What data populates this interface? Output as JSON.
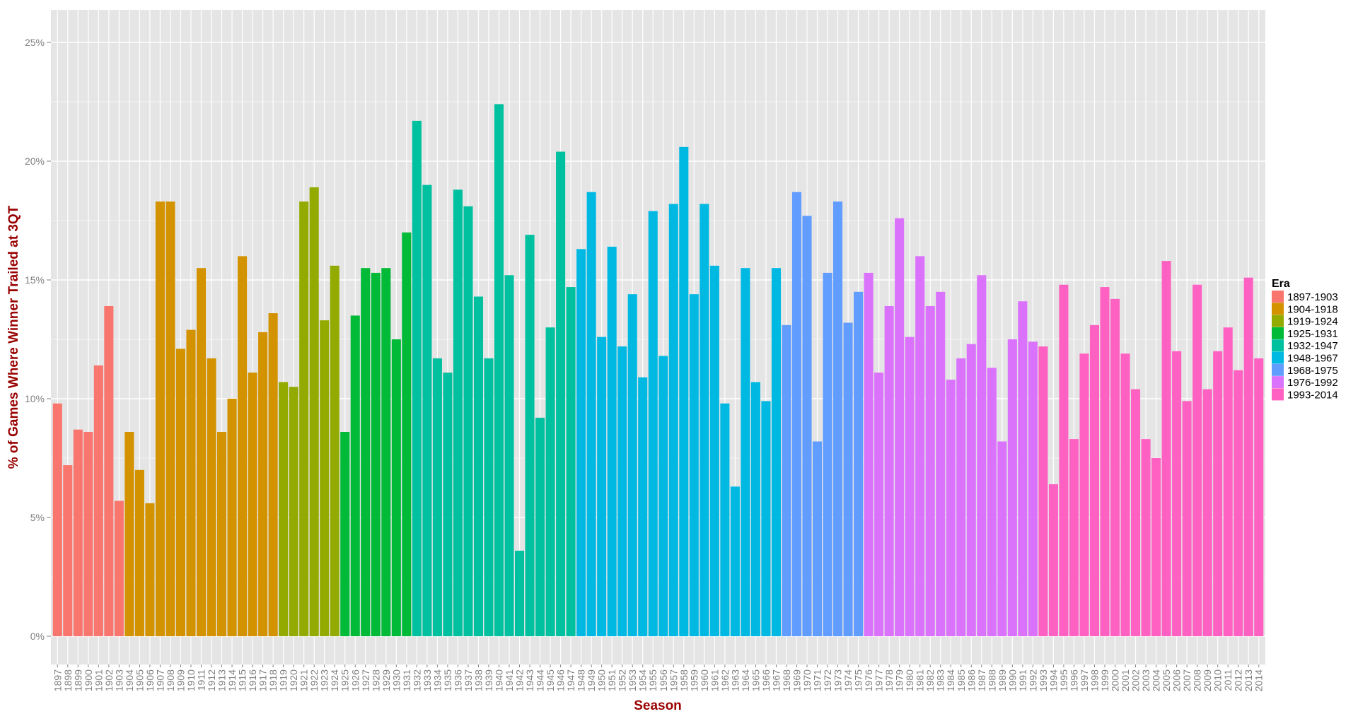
{
  "chart_data": {
    "type": "bar",
    "title": "",
    "xlabel": "Season",
    "ylabel": "% of Games Where Winner Trailed at 3QT",
    "ylim": [
      0,
      0.26
    ],
    "y_ticks": [
      0,
      0.05,
      0.1,
      0.15,
      0.2,
      0.25
    ],
    "y_tick_labels": [
      "0%",
      "5%",
      "10%",
      "15%",
      "20%",
      "25%"
    ],
    "grid": true,
    "legend_position": "right",
    "legend": {
      "title": "Era",
      "entries": [
        {
          "label": "1897-1903",
          "color": "#F8766D"
        },
        {
          "label": "1904-1918",
          "color": "#D39200"
        },
        {
          "label": "1919-1924",
          "color": "#93AA00"
        },
        {
          "label": "1925-1931",
          "color": "#00BA38"
        },
        {
          "label": "1932-1947",
          "color": "#00C19F"
        },
        {
          "label": "1948-1967",
          "color": "#00B9E3"
        },
        {
          "label": "1968-1975",
          "color": "#619CFF"
        },
        {
          "label": "1976-1992",
          "color": "#DB72FB"
        },
        {
          "label": "1993-2014",
          "color": "#FF61C3"
        }
      ]
    },
    "categories": [
      "1897",
      "1898",
      "1899",
      "1900",
      "1901",
      "1902",
      "1903",
      "1904",
      "1905",
      "1906",
      "1907",
      "1908",
      "1909",
      "1910",
      "1911",
      "1912",
      "1913",
      "1914",
      "1915",
      "1916",
      "1917",
      "1918",
      "1919",
      "1920",
      "1921",
      "1922",
      "1923",
      "1924",
      "1925",
      "1926",
      "1927",
      "1928",
      "1929",
      "1930",
      "1931",
      "1932",
      "1933",
      "1934",
      "1935",
      "1936",
      "1937",
      "1938",
      "1939",
      "1940",
      "1941",
      "1942",
      "1943",
      "1944",
      "1945",
      "1946",
      "1947",
      "1948",
      "1949",
      "1950",
      "1951",
      "1952",
      "1953",
      "1954",
      "1955",
      "1956",
      "1957",
      "1958",
      "1959",
      "1960",
      "1961",
      "1962",
      "1963",
      "1964",
      "1965",
      "1966",
      "1967",
      "1968",
      "1969",
      "1970",
      "1971",
      "1972",
      "1973",
      "1974",
      "1975",
      "1976",
      "1977",
      "1978",
      "1979",
      "1980",
      "1981",
      "1982",
      "1983",
      "1984",
      "1985",
      "1986",
      "1987",
      "1988",
      "1989",
      "1990",
      "1991",
      "1992",
      "1993",
      "1994",
      "1995",
      "1996",
      "1997",
      "1998",
      "1999",
      "2000",
      "2001",
      "2002",
      "2003",
      "2004",
      "2005",
      "2006",
      "2007",
      "2008",
      "2009",
      "2010",
      "2011",
      "2012",
      "2013",
      "2014"
    ],
    "values": [
      0.098,
      0.072,
      0.087,
      0.086,
      0.114,
      0.139,
      0.057,
      0.086,
      0.07,
      0.056,
      0.183,
      0.183,
      0.121,
      0.129,
      0.155,
      0.117,
      0.086,
      0.1,
      0.16,
      0.111,
      0.128,
      0.136,
      0.107,
      0.105,
      0.183,
      0.189,
      0.133,
      0.156,
      0.086,
      0.135,
      0.155,
      0.153,
      0.155,
      0.125,
      0.17,
      0.217,
      0.19,
      0.117,
      0.111,
      0.188,
      0.181,
      0.143,
      0.117,
      0.224,
      0.152,
      0.036,
      0.169,
      0.092,
      0.13,
      0.204,
      0.147,
      0.163,
      0.187,
      0.126,
      0.164,
      0.122,
      0.144,
      0.109,
      0.179,
      0.118,
      0.182,
      0.206,
      0.144,
      0.182,
      0.156,
      0.098,
      0.063,
      0.155,
      0.107,
      0.099,
      0.155,
      0.131,
      0.187,
      0.177,
      0.082,
      0.153,
      0.183,
      0.132,
      0.145,
      0.153,
      0.111,
      0.139,
      0.176,
      0.126,
      0.16,
      0.139,
      0.145,
      0.108,
      0.117,
      0.123,
      0.152,
      0.113,
      0.082,
      0.125,
      0.141,
      0.124,
      0.122,
      0.064,
      0.148,
      0.083,
      0.119,
      0.131,
      0.147,
      0.142,
      0.119,
      0.104,
      0.083,
      0.075,
      0.158,
      0.12,
      0.099,
      0.148,
      0.104,
      0.12,
      0.13,
      0.112,
      0.151,
      0.117
    ],
    "eras": [
      0,
      0,
      0,
      0,
      0,
      0,
      0,
      1,
      1,
      1,
      1,
      1,
      1,
      1,
      1,
      1,
      1,
      1,
      1,
      1,
      1,
      1,
      2,
      2,
      2,
      2,
      2,
      2,
      3,
      3,
      3,
      3,
      3,
      3,
      3,
      4,
      4,
      4,
      4,
      4,
      4,
      4,
      4,
      4,
      4,
      4,
      4,
      4,
      4,
      4,
      4,
      5,
      5,
      5,
      5,
      5,
      5,
      5,
      5,
      5,
      5,
      5,
      5,
      5,
      5,
      5,
      5,
      5,
      5,
      5,
      5,
      6,
      6,
      6,
      6,
      6,
      6,
      6,
      6,
      7,
      7,
      7,
      7,
      7,
      7,
      7,
      7,
      7,
      7,
      7,
      7,
      7,
      7,
      7,
      7,
      7,
      8,
      8,
      8,
      8,
      8,
      8,
      8,
      8,
      8,
      8,
      8,
      8,
      8,
      8,
      8,
      8,
      8,
      8,
      8,
      8,
      8,
      8
    ]
  }
}
